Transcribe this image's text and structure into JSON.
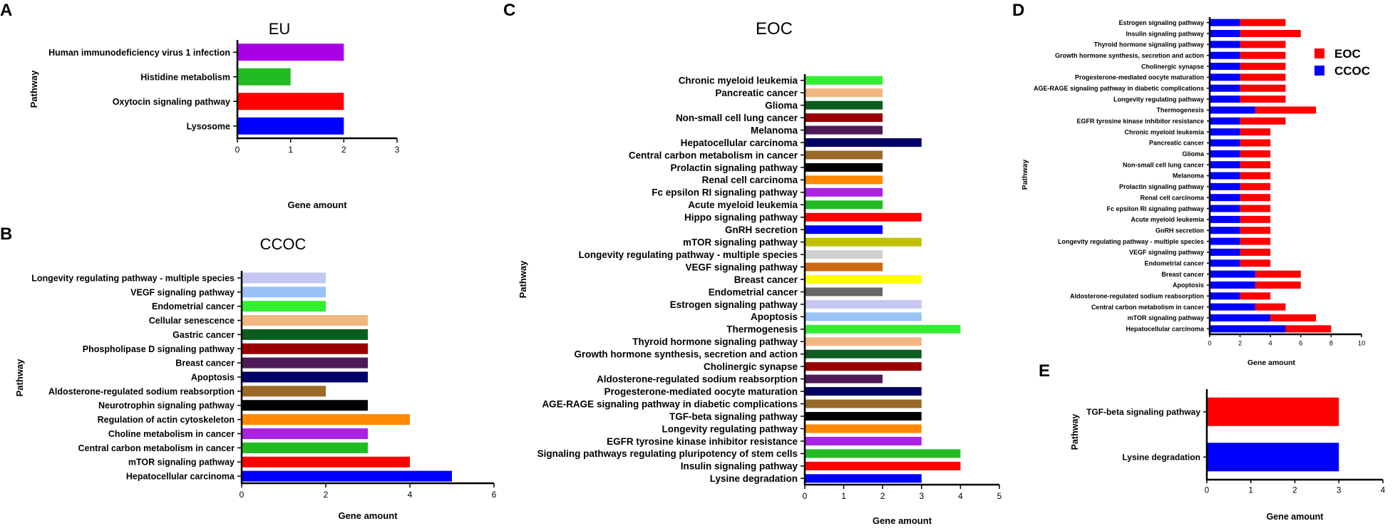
{
  "figure": {
    "panel_letters": [
      "A",
      "B",
      "C",
      "D",
      "E"
    ]
  },
  "chart_data": [
    {
      "panel": "A",
      "type": "bar",
      "orientation": "horizontal",
      "title": "EU",
      "xlabel": "Gene amount",
      "ylabel": "Pathway",
      "xlim": [
        0,
        3
      ],
      "xticks": [
        0,
        1,
        2,
        3
      ],
      "categories": [
        "Human immunodeficiency virus 1 infection",
        "Histidine metabolism",
        "Oxytocin signaling pathway",
        "Lysosome"
      ],
      "values": [
        2,
        1,
        2,
        2
      ],
      "colors": [
        "#aa00e6",
        "#22bb22",
        "#ff0000",
        "#0000ff"
      ]
    },
    {
      "panel": "B",
      "type": "bar",
      "orientation": "horizontal",
      "title": "CCOC",
      "xlabel": "Gene amount",
      "ylabel": "Pathway",
      "xlim": [
        0,
        6
      ],
      "xticks": [
        0,
        2,
        4,
        6
      ],
      "categories": [
        "Longevity regulating pathway - multiple species",
        "VEGF signaling pathway",
        "Endometrial cancer",
        "Cellular senescence",
        "Gastric cancer",
        "Phospholipase D signaling pathway",
        "Breast cancer",
        "Apoptosis",
        "Aldosterone-regulated sodium reabsorption",
        "Neurotrophin signaling pathway",
        "Regulation of actin cytoskeleton",
        "Choline metabolism in cancer",
        "Central carbon metabolism in cancer",
        "mTOR signaling pathway",
        "Hepatocellular carcinoma"
      ],
      "values": [
        2,
        2,
        2,
        3,
        3,
        3,
        3,
        3,
        2,
        3,
        4,
        3,
        3,
        4,
        5
      ],
      "colors": [
        "#c6c6f2",
        "#99c2f5",
        "#33ee33",
        "#f2b680",
        "#0d5c20",
        "#990000",
        "#4d1a57",
        "#000066",
        "#9a6a28",
        "#000000",
        "#ff8800",
        "#aa22e6",
        "#22bb22",
        "#ff0000",
        "#0000ff"
      ]
    },
    {
      "panel": "C",
      "type": "bar",
      "orientation": "horizontal",
      "title": "EOC",
      "xlabel": "Gene amount",
      "ylabel": "Pathway",
      "xlim": [
        0,
        5
      ],
      "xticks": [
        0,
        1,
        2,
        3,
        4,
        5
      ],
      "categories": [
        "Chronic myeloid leukemia",
        "Pancreatic cancer",
        "Glioma",
        "Non-small cell lung cancer",
        "Melanoma",
        "Hepatocellular carcinoma",
        "Central carbon metabolism in cancer",
        "Prolactin signaling pathway",
        "Renal cell carcinoma",
        "Fc epsilon RI signaling pathway",
        "Acute myeloid leukemia",
        "Hippo signaling pathway",
        "GnRH secretion",
        "mTOR signaling pathway",
        "Longevity regulating pathway - multiple species",
        "VEGF signaling pathway",
        "Breast cancer",
        "Endometrial cancer",
        "Estrogen signaling pathway",
        "Apoptosis",
        "Thermogenesis",
        "Thyroid hormone signaling pathway",
        "Growth hormone synthesis, secretion and action",
        "Cholinergic synapse",
        "Aldosterone-regulated sodium reabsorption",
        "Progesterone-mediated oocyte maturation",
        "AGE-RAGE signaling pathway in diabetic complications",
        "TGF-beta signaling pathway",
        "Longevity regulating pathway",
        "EGFR tyrosine kinase inhibitor resistance",
        "Signaling pathways regulating pluripotency of stem cells",
        "Insulin signaling pathway",
        "Lysine degradation"
      ],
      "values": [
        2,
        2,
        2,
        2,
        2,
        3,
        2,
        2,
        2,
        2,
        2,
        3,
        2,
        3,
        2,
        2,
        3,
        2,
        3,
        3,
        4,
        3,
        3,
        3,
        2,
        3,
        3,
        3,
        3,
        3,
        4,
        4,
        3
      ],
      "colors": [
        "#33ee33",
        "#f2b680",
        "#0d5c20",
        "#990000",
        "#4d1a57",
        "#000066",
        "#9a6a28",
        "#000000",
        "#ff8800",
        "#aa22e6",
        "#22bb22",
        "#ff0000",
        "#0000ff",
        "#c0c000",
        "#d0d0d0",
        "#cc6a12",
        "#ffff00",
        "#666666",
        "#c6c6f2",
        "#99c2f5",
        "#33ee33",
        "#f2b680",
        "#0d5c20",
        "#990000",
        "#4d1a57",
        "#000066",
        "#9a6a28",
        "#000000",
        "#ff8800",
        "#aa22e6",
        "#22bb22",
        "#ff0000",
        "#0000ff"
      ]
    },
    {
      "panel": "D",
      "type": "bar",
      "orientation": "horizontal",
      "stacked": true,
      "title": "",
      "xlabel": "Gene amount",
      "ylabel": "Pathway",
      "xlim": [
        0,
        10
      ],
      "xticks": [
        0,
        2,
        4,
        6,
        8,
        10
      ],
      "legend": [
        "EOC",
        "CCOC"
      ],
      "legend_position": "top-right",
      "categories": [
        "Estrogen signaling pathway",
        "Insulin signaling pathway",
        "Thyroid hormone signaling pathway",
        "Growth hormone synthesis, secretion and action",
        "Cholinergic synapse",
        "Progesterone-mediated oocyte maturation",
        "AGE-RAGE signaling pathway in diabetic complications",
        "Longevity regulating pathway",
        "Thermogenesis",
        "EGFR tyrosine kinase inhibitor resistance",
        "Chronic myeloid leukemia",
        "Pancreatic cancer",
        "Glioma",
        "Non-small cell lung cancer",
        "Melanoma",
        "Prolactin signaling pathway",
        "Renal cell carcinoma",
        "Fc epsilon RI signaling pathway",
        "Acute myeloid leukemia",
        "GnRH secretion",
        "Longevity regulating pathway - multiple species",
        "VEGF signaling pathway",
        "Endometrial cancer",
        "Breast cancer",
        "Apoptosis",
        "Aldosterone-regulated sodium reabsorption",
        "Central carbon metabolism in cancer",
        "mTOR signaling pathway",
        "Hepatocellular carcinoma"
      ],
      "series": [
        {
          "name": "CCOC",
          "color": "#0000ff",
          "values": [
            2,
            2,
            2,
            2,
            2,
            2,
            2,
            2,
            3,
            2,
            2,
            2,
            2,
            2,
            2,
            2,
            2,
            2,
            2,
            2,
            2,
            2,
            2,
            3,
            3,
            2,
            3,
            4,
            5
          ]
        },
        {
          "name": "EOC",
          "color": "#ff0000",
          "values": [
            3,
            4,
            3,
            3,
            3,
            3,
            3,
            3,
            4,
            3,
            2,
            2,
            2,
            2,
            2,
            2,
            2,
            2,
            2,
            2,
            2,
            2,
            2,
            3,
            3,
            2,
            2,
            3,
            3
          ]
        }
      ]
    },
    {
      "panel": "E",
      "type": "bar",
      "orientation": "horizontal",
      "title": "",
      "xlabel": "Gene amount",
      "ylabel": "Pathway",
      "xlim": [
        0,
        4
      ],
      "xticks": [
        0,
        1,
        2,
        3,
        4
      ],
      "categories": [
        "TGF-beta signaling pathway",
        "Lysine degradation"
      ],
      "values": [
        3,
        3
      ],
      "colors": [
        "#ff0000",
        "#0000ff"
      ]
    }
  ]
}
